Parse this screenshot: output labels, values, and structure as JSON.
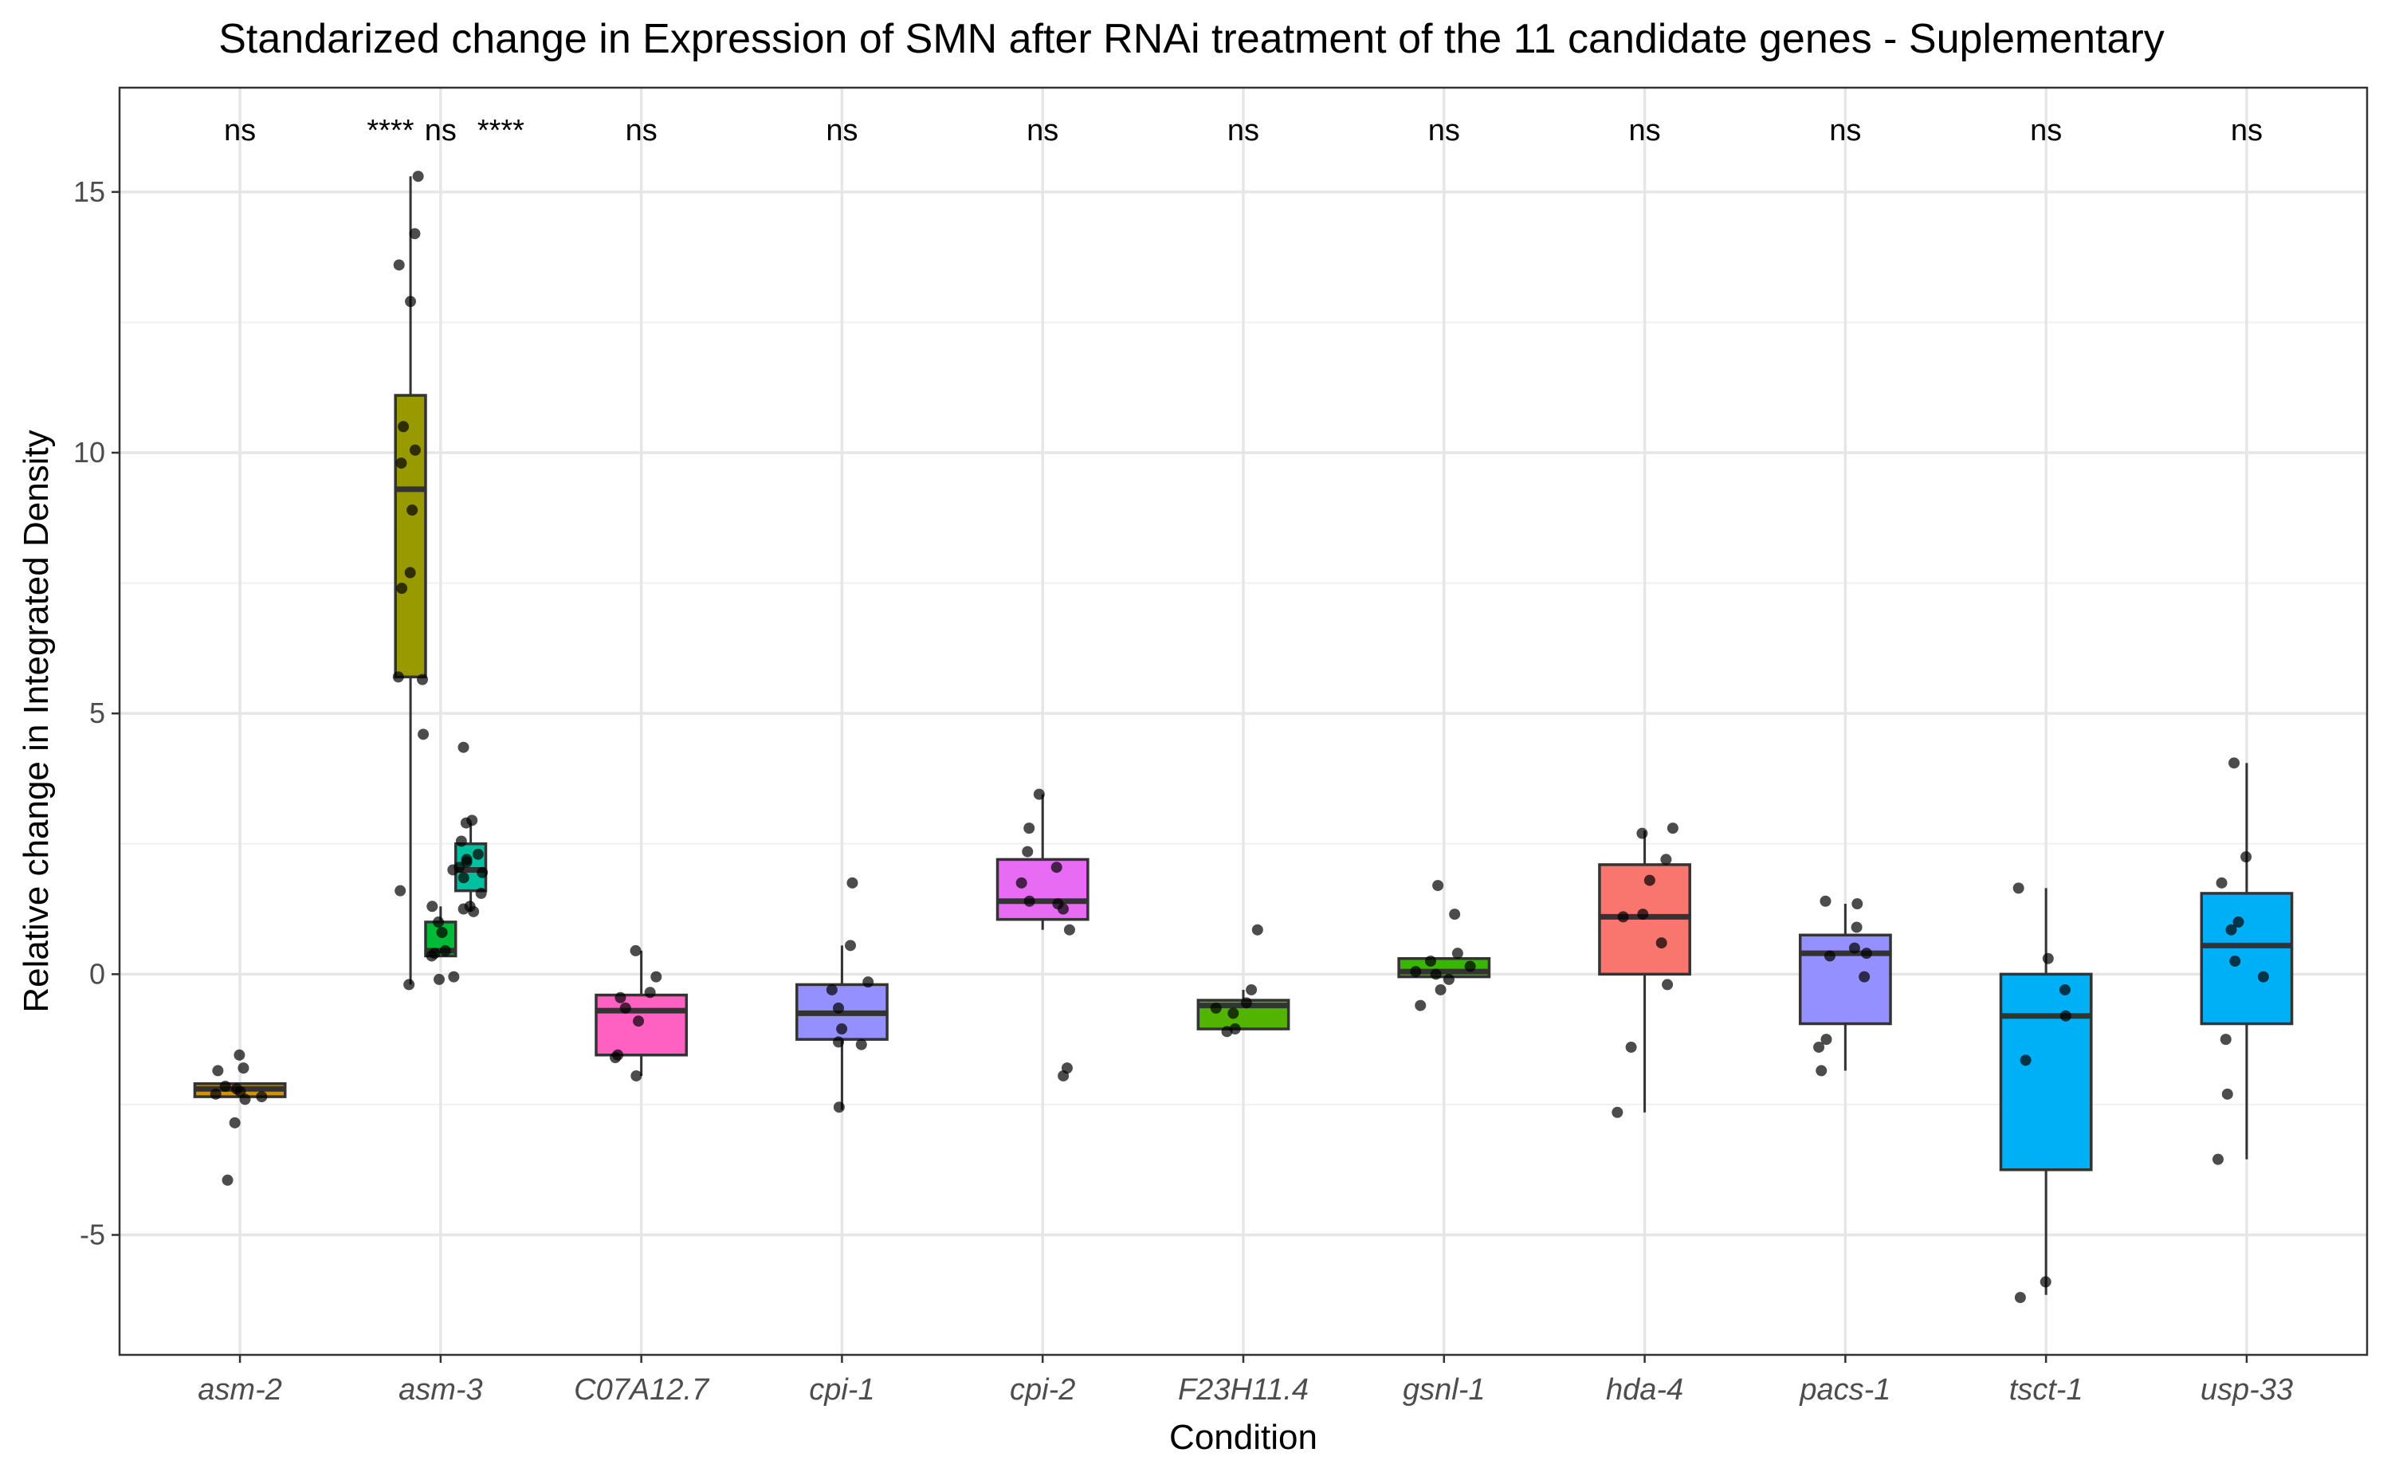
{
  "chart_data": {
    "type": "box",
    "title": "Standarized change in Expression of SMN after RNAi treatment of the 11 candidate genes - Suplementary",
    "xlabel": "Condition",
    "ylabel": "Relative change in Integrated Density",
    "ylim": [
      -7.3,
      17.0
    ],
    "yticks": [
      -5,
      0,
      5,
      10,
      15
    ],
    "ytick_labels": [
      "-5",
      "0",
      "5",
      "10",
      "15"
    ],
    "grid": true,
    "categories": [
      "asm-2",
      "asm-3",
      "C07A12.7",
      "cpi-1",
      "cpi-2",
      "F23H11.4",
      "gsnl-1",
      "hda-4",
      "pacs-1",
      "tsct-1",
      "usp-33"
    ],
    "significance": [
      {
        "pos": 1,
        "label": "ns"
      },
      {
        "pos": 1.75,
        "label": "****"
      },
      {
        "pos": 2,
        "label": "ns"
      },
      {
        "pos": 2.3,
        "label": "****"
      },
      {
        "pos": 3,
        "label": "ns"
      },
      {
        "pos": 4,
        "label": "ns"
      },
      {
        "pos": 5,
        "label": "ns"
      },
      {
        "pos": 6,
        "label": "ns"
      },
      {
        "pos": 7,
        "label": "ns"
      },
      {
        "pos": 8,
        "label": "ns"
      },
      {
        "pos": 9,
        "label": "ns"
      },
      {
        "pos": 10,
        "label": "ns"
      },
      {
        "pos": 11,
        "label": "ns"
      }
    ],
    "boxes": [
      {
        "pos": 1,
        "width": 0.45,
        "color": "#D39200",
        "q1": -2.35,
        "median": -2.2,
        "q3": -2.1,
        "whisker_low": -2.35,
        "whisker_high": -2.1,
        "points": [
          -1.55,
          -1.8,
          -1.85,
          -2.15,
          -2.2,
          -2.25,
          -2.3,
          -2.35,
          -2.4,
          -2.85,
          -3.95
        ]
      },
      {
        "pos": 1.85,
        "width": 0.15,
        "color": "#999900",
        "q1": 5.7,
        "median": 9.3,
        "q3": 11.1,
        "whisker_low": -0.2,
        "whisker_high": 15.3,
        "points": [
          15.3,
          14.2,
          13.6,
          12.9,
          10.5,
          10.05,
          9.8,
          8.9,
          7.7,
          7.4,
          5.7,
          5.65,
          4.6,
          1.6,
          -0.2
        ]
      },
      {
        "pos": 2.0,
        "width": 0.15,
        "color": "#00BA38",
        "q1": 0.35,
        "median": 0.45,
        "q3": 1.0,
        "whisker_low": 0.35,
        "whisker_high": 1.3,
        "points": [
          2.0,
          1.3,
          1.0,
          0.8,
          0.45,
          0.4,
          0.35,
          -0.05,
          -0.1
        ]
      },
      {
        "pos": 2.15,
        "width": 0.15,
        "color": "#00C19F",
        "q1": 1.6,
        "median": 2.0,
        "q3": 2.5,
        "whisker_low": 1.2,
        "whisker_high": 2.9,
        "points": [
          4.35,
          2.95,
          2.9,
          2.55,
          2.3,
          2.2,
          2.15,
          2.05,
          1.95,
          1.85,
          1.55,
          1.3,
          1.25,
          1.2
        ]
      },
      {
        "pos": 3,
        "width": 0.45,
        "color": "#FF61C3",
        "q1": -1.55,
        "median": -0.7,
        "q3": -0.4,
        "whisker_low": -1.95,
        "whisker_high": 0.45,
        "points": [
          0.45,
          -0.05,
          -0.35,
          -0.45,
          -0.65,
          -0.9,
          -1.55,
          -1.6,
          -1.95
        ]
      },
      {
        "pos": 4,
        "width": 0.45,
        "color": "#9590FF",
        "q1": -1.25,
        "median": -0.75,
        "q3": -0.2,
        "whisker_low": -2.6,
        "whisker_high": 0.55,
        "points": [
          1.75,
          0.55,
          -0.15,
          -0.3,
          -0.65,
          -1.05,
          -1.3,
          -1.35,
          -2.55
        ]
      },
      {
        "pos": 5,
        "width": 0.45,
        "color": "#E76BF3",
        "q1": 1.05,
        "median": 1.4,
        "q3": 2.2,
        "whisker_low": 0.85,
        "whisker_high": 3.45,
        "points": [
          3.45,
          2.8,
          2.35,
          2.05,
          1.75,
          1.4,
          1.35,
          1.25,
          0.85,
          -1.8,
          -1.95
        ]
      },
      {
        "pos": 6,
        "width": 0.45,
        "color": "#53B400",
        "q1": -1.05,
        "median": -0.6,
        "q3": -0.5,
        "whisker_low": -1.05,
        "whisker_high": -0.3,
        "points": [
          0.85,
          -0.3,
          -0.55,
          -0.65,
          -0.75,
          -1.05,
          -1.1
        ]
      },
      {
        "pos": 7,
        "width": 0.45,
        "color": "#39B600",
        "q1": -0.05,
        "median": 0.05,
        "q3": 0.3,
        "whisker_low": -0.05,
        "whisker_high": 0.3,
        "points": [
          1.7,
          1.15,
          0.4,
          0.25,
          0.15,
          0.05,
          0.0,
          -0.1,
          -0.3,
          -0.6
        ]
      },
      {
        "pos": 8,
        "width": 0.45,
        "color": "#F8766D",
        "q1": 0.0,
        "median": 1.1,
        "q3": 2.1,
        "whisker_low": -2.65,
        "whisker_high": 2.75,
        "points": [
          2.8,
          2.7,
          2.2,
          1.8,
          1.15,
          1.1,
          0.6,
          -0.2,
          -1.4,
          -2.65
        ]
      },
      {
        "pos": 9,
        "width": 0.45,
        "color": "#9590FF",
        "q1": -0.95,
        "median": 0.4,
        "q3": 0.75,
        "whisker_low": -1.85,
        "whisker_high": 1.35,
        "points": [
          1.4,
          1.35,
          0.9,
          0.5,
          0.4,
          0.35,
          -0.05,
          -1.25,
          -1.4,
          -1.85
        ]
      },
      {
        "pos": 10,
        "width": 0.45,
        "color": "#00B0F6",
        "q1": -3.75,
        "median": -0.8,
        "q3": 0.0,
        "whisker_low": -6.15,
        "whisker_high": 1.65,
        "points": [
          1.65,
          0.3,
          -0.3,
          -0.8,
          -1.65,
          -5.9,
          -6.2
        ]
      },
      {
        "pos": 11,
        "width": 0.45,
        "color": "#00B0F6",
        "q1": -0.95,
        "median": 0.55,
        "q3": 1.55,
        "whisker_low": -3.55,
        "whisker_high": 4.05,
        "points": [
          4.05,
          2.25,
          1.75,
          1.0,
          0.85,
          0.25,
          -0.05,
          -1.25,
          -2.3,
          -3.55
        ]
      }
    ]
  }
}
